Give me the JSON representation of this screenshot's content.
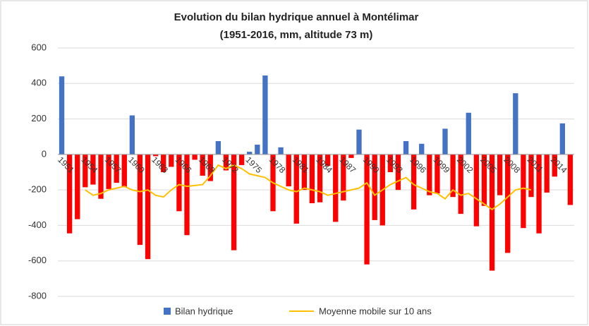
{
  "chart_data": {
    "type": "bar",
    "title": "Evolution du bilan hydrique annuel à Montélimar",
    "subtitle": "(1951-2016, mm, altitude 73 m)",
    "categories": [
      "1951",
      null,
      null,
      "1954",
      null,
      null,
      "1957",
      null,
      null,
      "1960",
      null,
      null,
      "1963",
      null,
      null,
      "1966",
      null,
      null,
      "1969",
      null,
      null,
      "1972",
      null,
      null,
      "1975",
      null,
      null,
      "1978",
      null,
      null,
      "1981",
      null,
      null,
      "1984",
      null,
      null,
      "1987",
      null,
      null,
      "1990",
      null,
      null,
      "1993",
      null,
      null,
      "1996",
      null,
      null,
      "1999",
      null,
      null,
      "2002",
      null,
      null,
      "2005",
      null,
      null,
      "2008",
      null,
      null,
      "2011",
      null,
      null,
      "2014",
      null,
      null
    ],
    "series": [
      {
        "name": "Bilan hydrique",
        "type": "bar",
        "color": "#4472c4",
        "negative_color": "#ff0000",
        "values": [
          440,
          -445,
          -365,
          -185,
          -170,
          -250,
          -195,
          -160,
          -185,
          220,
          -510,
          -590,
          -10,
          -100,
          -70,
          -320,
          -455,
          -30,
          -120,
          -150,
          75,
          -90,
          -540,
          -60,
          15,
          55,
          445,
          -320,
          40,
          -180,
          -390,
          -200,
          -275,
          -270,
          -65,
          -380,
          -260,
          -20,
          140,
          -620,
          -370,
          -400,
          -100,
          -200,
          75,
          -310,
          60,
          -230,
          -220,
          145,
          -240,
          -335,
          235,
          -405,
          -290,
          -655,
          -230,
          -555,
          345,
          -415,
          -240,
          -445,
          -215,
          -125,
          175,
          -285
        ]
      },
      {
        "name": "Moyenne mobile sur 10 ans",
        "type": "line",
        "color": "#ffc000",
        "values": [
          null,
          null,
          null,
          -200,
          -230,
          -220,
          -200,
          -190,
          -180,
          -200,
          -210,
          -200,
          -230,
          -240,
          -200,
          -170,
          -180,
          -175,
          -170,
          -120,
          -60,
          -80,
          -60,
          -80,
          -110,
          -120,
          -130,
          -160,
          -180,
          -200,
          -210,
          -190,
          -200,
          -210,
          -230,
          -220,
          -210,
          -200,
          -190,
          -160,
          -230,
          -200,
          -170,
          -150,
          -130,
          -170,
          -190,
          -210,
          -220,
          -250,
          -200,
          -230,
          -220,
          -250,
          -280,
          -310,
          -280,
          -240,
          -200,
          -190,
          -200,
          null,
          null,
          null,
          null,
          null
        ]
      }
    ],
    "ylim": [
      -800,
      600
    ],
    "yticks": [
      -800,
      -600,
      -400,
      -200,
      0,
      200,
      400,
      600
    ],
    "grid": true
  }
}
